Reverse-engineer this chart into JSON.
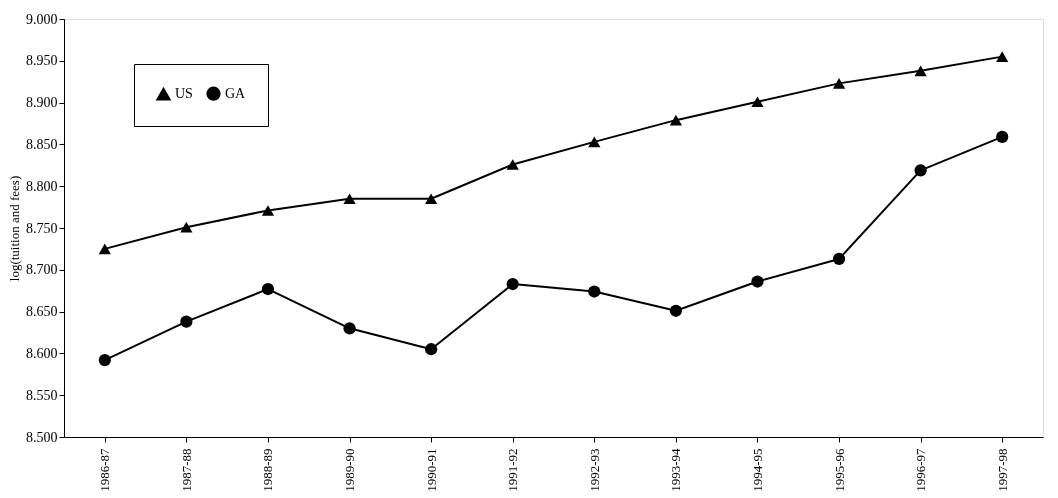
{
  "chart_data": {
    "type": "line",
    "ylabel": "log(tuition and fees)",
    "categories": [
      "1986-87",
      "1987-88",
      "1988-89",
      "1989-90",
      "1990-91",
      "1991-92",
      "1992-93",
      "1993-94",
      "1994-95",
      "1995-96",
      "1996-97",
      "1997-98"
    ],
    "series": [
      {
        "name": "US",
        "color": "#000000",
        "marker": "triangle",
        "values": [
          8.725,
          8.751,
          8.771,
          8.785,
          8.785,
          8.826,
          8.853,
          8.879,
          8.901,
          8.923,
          8.938,
          8.955
        ]
      },
      {
        "name": "GA",
        "color": "#000000",
        "marker": "circle",
        "values": [
          8.592,
          8.638,
          8.677,
          8.63,
          8.605,
          8.683,
          8.674,
          8.651,
          8.686,
          8.713,
          8.819,
          8.859
        ]
      }
    ],
    "ylim": [
      8.5,
      9.0
    ],
    "yticks": [
      {
        "value": 8.5,
        "label": "8.500"
      },
      {
        "value": 8.55,
        "label": "8.550"
      },
      {
        "value": 8.6,
        "label": "8.600"
      },
      {
        "value": 8.65,
        "label": "8.650"
      },
      {
        "value": 8.7,
        "label": "8.700"
      },
      {
        "value": 8.75,
        "label": "8.750"
      },
      {
        "value": 8.8,
        "label": "8.800"
      },
      {
        "value": 8.85,
        "label": "8.850"
      },
      {
        "value": 8.9,
        "label": "8.900"
      },
      {
        "value": 8.95,
        "label": "8.950"
      },
      {
        "value": 9.0,
        "label": "9.000"
      }
    ],
    "grid": false,
    "legend": "top left",
    "line_style": "solid"
  }
}
